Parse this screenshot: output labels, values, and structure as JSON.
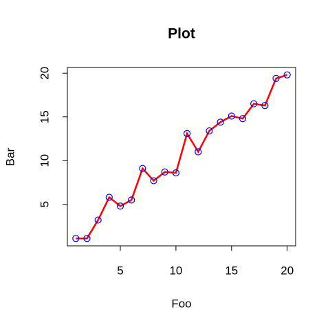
{
  "chart_data": {
    "type": "line",
    "title": "Plot",
    "x_label": "Foo",
    "y_label": "Bar",
    "x": [
      1,
      2,
      3,
      4,
      5,
      6,
      7,
      8,
      9,
      10,
      11,
      12,
      13,
      14,
      15,
      16,
      17,
      18,
      19,
      20
    ],
    "values": [
      1.1,
      1.1,
      3.2,
      5.8,
      4.8,
      5.5,
      9.1,
      7.7,
      8.7,
      8.6,
      13.1,
      11.0,
      13.4,
      14.4,
      15.1,
      14.8,
      16.5,
      16.3,
      19.4,
      19.8
    ],
    "line_color": "#ff0000",
    "marker_color": "#0000ff",
    "xlim": [
      0.24,
      20.76
    ],
    "xticks": [
      5,
      10,
      15,
      20
    ],
    "ylim": [
      0.25,
      20.65
    ],
    "yticks": [
      5,
      10,
      15,
      20
    ]
  }
}
